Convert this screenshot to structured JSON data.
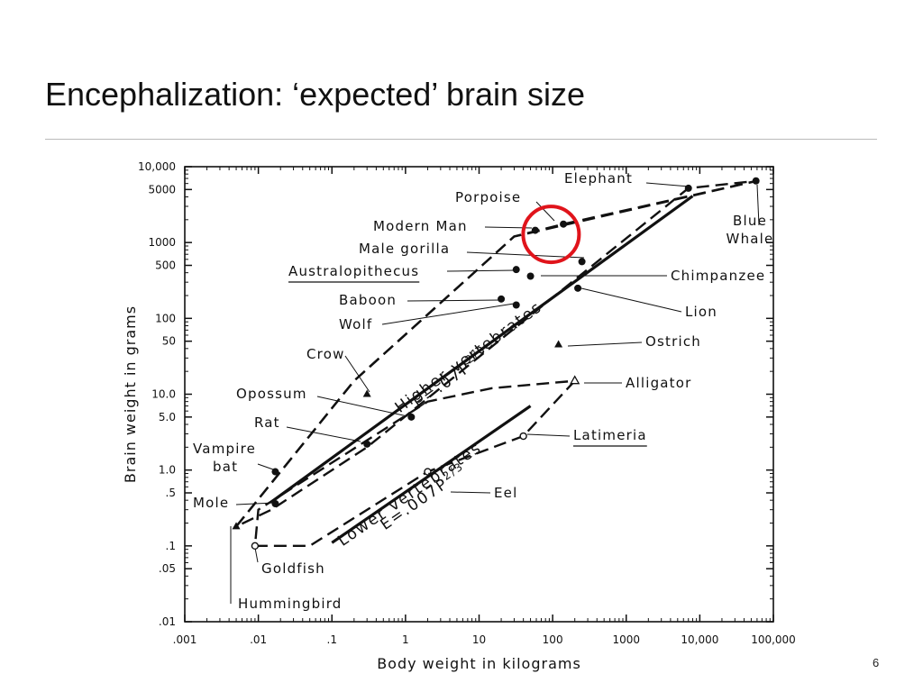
{
  "slide": {
    "title": "Encephalization: ‘expected’ brain size",
    "page_number": "6"
  },
  "colors": {
    "ink": "#111111",
    "highlight": "#e0141b",
    "rule": "#bbbbbb"
  },
  "chart_data": {
    "type": "scatter",
    "title": "",
    "xlabel": "Body weight in kilograms",
    "ylabel": "Brain weight in grams",
    "xscale": "log",
    "yscale": "log",
    "xlim": [
      0.001,
      100000
    ],
    "ylim": [
      0.01,
      10000
    ],
    "x_ticks": [
      {
        "v": 0.001,
        "label": ".001"
      },
      {
        "v": 0.01,
        "label": ".01"
      },
      {
        "v": 0.1,
        "label": ".1"
      },
      {
        "v": 1,
        "label": "1"
      },
      {
        "v": 10,
        "label": "10"
      },
      {
        "v": 100,
        "label": "100"
      },
      {
        "v": 1000,
        "label": "1000"
      },
      {
        "v": 10000,
        "label": "10,000"
      },
      {
        "v": 100000,
        "label": "100,000"
      }
    ],
    "y_ticks": [
      {
        "v": 10000,
        "label": "10,000"
      },
      {
        "v": 5000,
        "label": "5000"
      },
      {
        "v": 1000,
        "label": "1000"
      },
      {
        "v": 500,
        "label": "500"
      },
      {
        "v": 100,
        "label": "100"
      },
      {
        "v": 50,
        "label": "50"
      },
      {
        "v": 10,
        "label": "10.0"
      },
      {
        "v": 5,
        "label": "5.0"
      },
      {
        "v": 1,
        "label": "1.0"
      },
      {
        "v": 0.5,
        "label": ".5"
      },
      {
        "v": 0.1,
        "label": ".1"
      },
      {
        "v": 0.05,
        "label": ".05"
      },
      {
        "v": 0.01,
        "label": ".01"
      }
    ],
    "points": [
      {
        "name": "Elephant",
        "x": 7000,
        "y": 5200,
        "marker": "dot"
      },
      {
        "name": "Blue Whale",
        "x": 58000,
        "y": 6500,
        "marker": "dot"
      },
      {
        "name": "Porpoise",
        "x": 140,
        "y": 1750,
        "marker": "dot"
      },
      {
        "name": "Modern Man",
        "x": 58,
        "y": 1450,
        "marker": "dot"
      },
      {
        "name": "Male gorilla",
        "x": 250,
        "y": 560,
        "marker": "dot"
      },
      {
        "name": "Australopithecus",
        "x": 32,
        "y": 440,
        "marker": "dot"
      },
      {
        "name": "Chimpanzee",
        "x": 50,
        "y": 360,
        "marker": "dot"
      },
      {
        "name": "Lion",
        "x": 220,
        "y": 250,
        "marker": "dot"
      },
      {
        "name": "Baboon",
        "x": 20,
        "y": 180,
        "marker": "dot"
      },
      {
        "name": "Wolf",
        "x": 32,
        "y": 150,
        "marker": "dot"
      },
      {
        "name": "Ostrich",
        "x": 120,
        "y": 45,
        "marker": "triangle"
      },
      {
        "name": "Crow",
        "x": 0.3,
        "y": 10,
        "marker": "triangle"
      },
      {
        "name": "Opossum",
        "x": 1.2,
        "y": 5,
        "marker": "dot"
      },
      {
        "name": "Rat",
        "x": 0.3,
        "y": 2.2,
        "marker": "dot"
      },
      {
        "name": "Vampire bat",
        "x": 0.017,
        "y": 0.95,
        "marker": "dot"
      },
      {
        "name": "Mole",
        "x": 0.017,
        "y": 0.36,
        "marker": "dot"
      },
      {
        "name": "Hummingbird",
        "x": 0.005,
        "y": 0.18,
        "marker": "triangle"
      },
      {
        "name": "Goldfish",
        "x": 0.009,
        "y": 0.1,
        "marker": "circle"
      },
      {
        "name": "Alligator",
        "x": 200,
        "y": 15,
        "marker": "open-triangle"
      },
      {
        "name": "Latimeria",
        "x": 40,
        "y": 2.8,
        "marker": "circle"
      },
      {
        "name": "Eel",
        "x": 2,
        "y": 0.95,
        "marker": "circle"
      }
    ],
    "regression_lines": [
      {
        "name": "Higher vertebrates",
        "equation": "E=.07P2/3",
        "from": [
          0.015,
          0.38
        ],
        "to": [
          8000,
          4100
        ]
      },
      {
        "name": "Lower vertebrates",
        "equation": "E=.007P2/3",
        "from": [
          0.1,
          0.11
        ],
        "to": [
          50,
          7
        ]
      }
    ],
    "highlight": {
      "target": "Modern Man and Porpoise",
      "shape": "circle"
    },
    "grid": false,
    "legend": "none"
  }
}
